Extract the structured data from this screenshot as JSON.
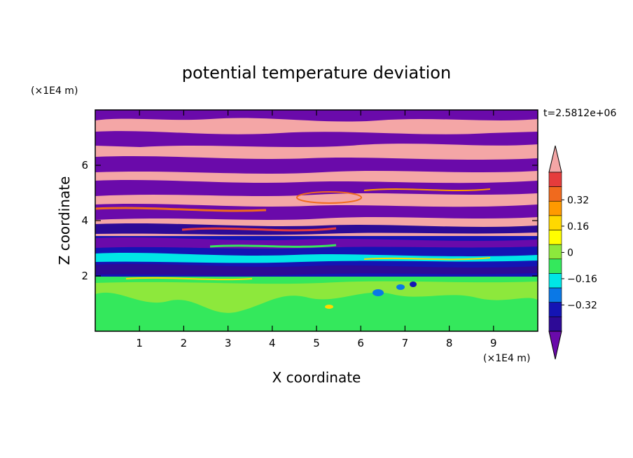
{
  "chart_data": {
    "type": "heatmap",
    "title": "potential temperature deviation",
    "xlabel": "X coordinate",
    "ylabel": "Z coordinate",
    "x_unit": "(×1E4 m)",
    "y_unit": "(×1E4 m)",
    "time_label": "t=2.5812e+06",
    "xlim": [
      0,
      10
    ],
    "ylim": [
      0,
      8
    ],
    "x_ticks": [
      1,
      2,
      3,
      4,
      5,
      6,
      7,
      8,
      9
    ],
    "y_ticks": [
      2,
      4,
      6
    ],
    "colorbar": {
      "levels": [
        -0.48,
        -0.4,
        -0.32,
        -0.24,
        -0.16,
        -0.08,
        0,
        0.08,
        0.16,
        0.24,
        0.32,
        0.4
      ],
      "labeled_ticks": [
        0.32,
        0.16,
        0,
        -0.16,
        -0.32
      ],
      "tick_labels": [
        "0.32",
        "0.16",
        "0",
        "−0.16",
        "−0.32"
      ],
      "colors_top_to_bottom": [
        "#f4a6a6",
        "#e53c3c",
        "#f06a1e",
        "#ff9a00",
        "#ffd800",
        "#ffff00",
        "#8de83c",
        "#34e85c",
        "#00e6e6",
        "#0a78e6",
        "#1414b4",
        "#2d0a96",
        "#6a0aaa"
      ],
      "extend": "both"
    },
    "layers_bottom_to_top": [
      {
        "z_from": 0.0,
        "z_to": 2.0,
        "dominant": "green / light green (≈ 0 to 0.08)"
      },
      {
        "z_from": 2.0,
        "z_to": 3.8,
        "dominant": "blue / purple mixed bands (≈ −0.48 to −0.16)"
      },
      {
        "z_from": 3.8,
        "z_to": 7.9,
        "dominant": "alternating pink (≥0.40) and purple (≤−0.48) bands"
      }
    ]
  }
}
